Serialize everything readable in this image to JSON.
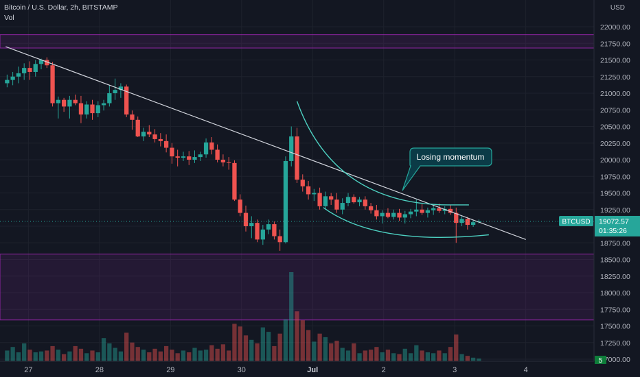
{
  "header": {
    "symbol_line": "Bitcoin / U.S. Dollar, 2h, BITSTAMP",
    "volume_label": "Vol",
    "currency": "USD"
  },
  "price_axis": {
    "ticks": [
      "22000.00",
      "21750.00",
      "21500.00",
      "21250.00",
      "21000.00",
      "20750.00",
      "20500.00",
      "20250.00",
      "20000.00",
      "19750.00",
      "19500.00",
      "19250.00",
      "19000.00",
      "18750.00",
      "18500.00",
      "18250.00",
      "18000.00",
      "17750.00",
      "17500.00",
      "17250.00",
      "17000.00"
    ],
    "tick_values": [
      22000,
      21750,
      21500,
      21250,
      21000,
      20750,
      20500,
      20250,
      20000,
      19750,
      19500,
      19250,
      19000,
      18750,
      18500,
      18250,
      18000,
      17750,
      17500,
      17250,
      17000
    ]
  },
  "time_axis": {
    "labels": [
      "27",
      "28",
      "29",
      "30",
      "Jul",
      "2",
      "3",
      "4"
    ]
  },
  "last_price": {
    "symbol": "BTCUSD",
    "price": "19072.57",
    "countdown": "01:35:26",
    "value": 19072.57
  },
  "volume_badge": "5",
  "annotation": {
    "text": "Losing momentum"
  },
  "colors": {
    "up": "#26a69a",
    "down": "#ef5350",
    "zone": "#9c27b0",
    "trendline": "#d1d4dc",
    "curve": "#4dd0c1",
    "background": "#131722"
  },
  "zones": [
    {
      "from": 21680,
      "to": 21880
    },
    {
      "from": 17590,
      "to": 18580
    }
  ],
  "trendline": [
    {
      "t": 26.68,
      "p": 21700
    },
    {
      "t": 34.0,
      "p": 18800
    }
  ],
  "chart_data": {
    "type": "candlestick",
    "x_unit": "days (27 = Jun 27, 31 = Jul 1)",
    "candles": [
      [
        26.7,
        21150,
        21280,
        21090,
        21200
      ],
      [
        26.78,
        21200,
        21320,
        21120,
        21250
      ],
      [
        26.86,
        21250,
        21400,
        21150,
        21300
      ],
      [
        26.94,
        21300,
        21450,
        21200,
        21380
      ],
      [
        27.02,
        21380,
        21480,
        21200,
        21320
      ],
      [
        27.1,
        21320,
        21500,
        21250,
        21440
      ],
      [
        27.18,
        21440,
        21520,
        21360,
        21500
      ],
      [
        27.26,
        21500,
        21540,
        21380,
        21420
      ],
      [
        27.34,
        21420,
        21470,
        20800,
        20850
      ],
      [
        27.42,
        20850,
        20950,
        20620,
        20900
      ],
      [
        27.5,
        20900,
        20930,
        20720,
        20800
      ],
      [
        27.58,
        20800,
        20960,
        20620,
        20900
      ],
      [
        27.66,
        20900,
        20980,
        20820,
        20850
      ],
      [
        27.74,
        20850,
        20960,
        20550,
        20680
      ],
      [
        27.82,
        20680,
        20880,
        20620,
        20830
      ],
      [
        27.9,
        20830,
        20900,
        20600,
        20700
      ],
      [
        27.98,
        20700,
        20880,
        20640,
        20820
      ],
      [
        28.06,
        20820,
        20900,
        20740,
        20850
      ],
      [
        28.14,
        20850,
        21120,
        20800,
        21000
      ],
      [
        28.22,
        21000,
        21220,
        20900,
        21050
      ],
      [
        28.3,
        21050,
        21150,
        20930,
        21100
      ],
      [
        28.38,
        21100,
        21130,
        20640,
        20680
      ],
      [
        28.46,
        20680,
        20740,
        20450,
        20600
      ],
      [
        28.54,
        20600,
        20650,
        20340,
        20350
      ],
      [
        28.62,
        20350,
        20480,
        20280,
        20420
      ],
      [
        28.7,
        20420,
        20520,
        20340,
        20380
      ],
      [
        28.78,
        20380,
        20460,
        20260,
        20310
      ],
      [
        28.86,
        20310,
        20400,
        20200,
        20280
      ],
      [
        28.94,
        20280,
        20380,
        20110,
        20180
      ],
      [
        29.02,
        20180,
        20250,
        19940,
        20050
      ],
      [
        29.1,
        20050,
        20150,
        19900,
        20030
      ],
      [
        29.18,
        20030,
        20120,
        19980,
        20050
      ],
      [
        29.26,
        20050,
        20130,
        19920,
        20000
      ],
      [
        29.34,
        20000,
        20140,
        19950,
        20040
      ],
      [
        29.42,
        20040,
        20120,
        19980,
        20080
      ],
      [
        29.5,
        20080,
        20320,
        20030,
        20260
      ],
      [
        29.58,
        20260,
        20340,
        20080,
        20150
      ],
      [
        29.66,
        20150,
        20230,
        19960,
        20000
      ],
      [
        29.74,
        20000,
        20080,
        19900,
        19960
      ],
      [
        29.82,
        19960,
        20040,
        19850,
        19950
      ],
      [
        29.9,
        19950,
        19990,
        19380,
        19400
      ],
      [
        29.98,
        19400,
        19480,
        19150,
        19200
      ],
      [
        30.06,
        19200,
        19310,
        18920,
        19000
      ],
      [
        30.14,
        19000,
        19150,
        18820,
        19050
      ],
      [
        30.22,
        19050,
        19100,
        18760,
        18800
      ],
      [
        30.3,
        18800,
        19020,
        18720,
        18950
      ],
      [
        30.38,
        18950,
        19100,
        18880,
        19030
      ],
      [
        30.46,
        19030,
        19070,
        18800,
        18850
      ],
      [
        30.54,
        18850,
        18950,
        18630,
        18760
      ],
      [
        30.62,
        18760,
        20050,
        18740,
        19980
      ],
      [
        30.7,
        19980,
        20500,
        19900,
        20350
      ],
      [
        30.78,
        20350,
        20480,
        19650,
        19700
      ],
      [
        30.86,
        19700,
        19780,
        19520,
        19600
      ],
      [
        30.94,
        19600,
        19680,
        19400,
        19480
      ],
      [
        31.02,
        19480,
        19560,
        19380,
        19500
      ],
      [
        31.1,
        19500,
        19580,
        19250,
        19300
      ],
      [
        31.18,
        19300,
        19520,
        19250,
        19450
      ],
      [
        31.26,
        19450,
        19500,
        19320,
        19400
      ],
      [
        31.34,
        19400,
        19500,
        19200,
        19250
      ],
      [
        31.42,
        19250,
        19420,
        19180,
        19350
      ],
      [
        31.5,
        19350,
        19500,
        19300,
        19440
      ],
      [
        31.58,
        19440,
        19480,
        19340,
        19360
      ],
      [
        31.66,
        19360,
        19440,
        19300,
        19400
      ],
      [
        31.74,
        19400,
        19450,
        19250,
        19300
      ],
      [
        31.82,
        19300,
        19350,
        19190,
        19240
      ],
      [
        31.9,
        19240,
        19320,
        19100,
        19150
      ],
      [
        31.98,
        19150,
        19240,
        19040,
        19200
      ],
      [
        32.06,
        19200,
        19270,
        19120,
        19140
      ],
      [
        32.14,
        19140,
        19250,
        19100,
        19200
      ],
      [
        32.22,
        19200,
        19260,
        19080,
        19130
      ],
      [
        32.3,
        19130,
        19230,
        19040,
        19180
      ],
      [
        32.38,
        19180,
        19260,
        19120,
        19220
      ],
      [
        32.46,
        19220,
        19400,
        19150,
        19250
      ],
      [
        32.54,
        19250,
        19330,
        19170,
        19200
      ],
      [
        32.62,
        19200,
        19280,
        19130,
        19240
      ],
      [
        32.7,
        19240,
        19330,
        19170,
        19270
      ],
      [
        32.78,
        19270,
        19340,
        19200,
        19230
      ],
      [
        32.86,
        19230,
        19300,
        19180,
        19260
      ],
      [
        32.94,
        19260,
        19320,
        19170,
        19200
      ],
      [
        33.02,
        19200,
        19280,
        18750,
        19050
      ],
      [
        33.1,
        19050,
        19150,
        19000,
        19110
      ],
      [
        33.18,
        19110,
        19140,
        18950,
        19020
      ],
      [
        33.26,
        19020,
        19090,
        18990,
        19060
      ],
      [
        33.34,
        19060,
        19100,
        19040,
        19072.57
      ]
    ],
    "volume": [
      0.12,
      0.16,
      0.1,
      0.2,
      0.13,
      0.1,
      0.11,
      0.12,
      0.17,
      0.13,
      0.08,
      0.11,
      0.17,
      0.14,
      0.09,
      0.12,
      0.1,
      0.26,
      0.2,
      0.15,
      0.11,
      0.32,
      0.21,
      0.16,
      0.13,
      0.1,
      0.14,
      0.11,
      0.17,
      0.13,
      0.09,
      0.12,
      0.1,
      0.15,
      0.12,
      0.13,
      0.18,
      0.14,
      0.19,
      0.12,
      0.42,
      0.39,
      0.29,
      0.24,
      0.2,
      0.38,
      0.33,
      0.17,
      0.31,
      0.47,
      1.0,
      0.56,
      0.46,
      0.35,
      0.22,
      0.31,
      0.27,
      0.2,
      0.23,
      0.15,
      0.12,
      0.2,
      0.09,
      0.12,
      0.13,
      0.16,
      0.1,
      0.13,
      0.09,
      0.08,
      0.14,
      0.09,
      0.18,
      0.12,
      0.1,
      0.09,
      0.12,
      0.09,
      0.16,
      0.3,
      0.08,
      0.06,
      0.04,
      0.03
    ],
    "xlim": [
      26.6,
      34.96
    ],
    "ylim": [
      16980,
      22200
    ],
    "ylabel": "USD",
    "grid": true,
    "legend": "none"
  }
}
